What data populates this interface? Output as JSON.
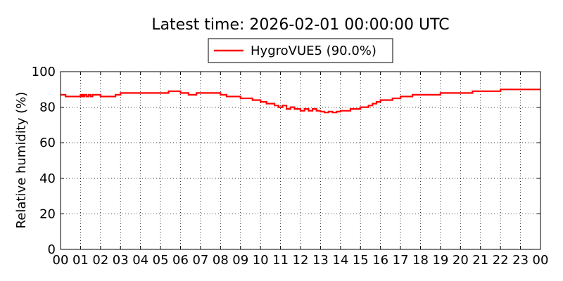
{
  "chart_data": {
    "type": "line",
    "title": "Latest time: 2026-02-01 00:00:00 UTC",
    "xlabel": "",
    "ylabel": "Relative humidity (%)",
    "xlim": [
      0,
      24
    ],
    "ylim": [
      0,
      100
    ],
    "x_tick_labels": [
      "00",
      "01",
      "02",
      "03",
      "04",
      "05",
      "06",
      "07",
      "08",
      "09",
      "10",
      "11",
      "12",
      "13",
      "14",
      "15",
      "16",
      "17",
      "18",
      "19",
      "20",
      "21",
      "22",
      "23",
      "00"
    ],
    "y_ticks": [
      0,
      20,
      40,
      60,
      80,
      100
    ],
    "grid": true,
    "legend_position": "top-center",
    "series": [
      {
        "name": "HygroVUE5 (90.0%)",
        "color": "#ff0000",
        "x": [
          0.0,
          0.25,
          0.9,
          1.0,
          1.05,
          1.1,
          1.15,
          1.2,
          1.3,
          1.4,
          1.5,
          1.6,
          2.0,
          2.6,
          2.75,
          3.0,
          4.0,
          5.0,
          5.4,
          6.0,
          6.4,
          6.8,
          7.0,
          8.0,
          8.3,
          8.9,
          9.0,
          9.4,
          9.6,
          10.0,
          10.2,
          10.3,
          10.5,
          10.7,
          10.9,
          11.1,
          11.3,
          11.5,
          11.7,
          12.0,
          12.2,
          12.4,
          12.6,
          12.8,
          13.0,
          13.2,
          13.4,
          13.6,
          13.8,
          14.0,
          14.2,
          14.5,
          14.8,
          15.0,
          15.2,
          15.4,
          15.6,
          15.8,
          16.0,
          16.2,
          16.6,
          17.0,
          17.2,
          17.6,
          18.0,
          18.6,
          19.0,
          20.0,
          20.2,
          20.6,
          21.0,
          21.3,
          22.0,
          23.0,
          24.0
        ],
        "values": [
          87,
          86,
          86,
          87,
          86,
          87,
          86,
          87,
          86,
          87,
          86,
          87,
          86,
          86,
          87,
          88,
          88,
          88,
          89,
          88,
          87,
          88,
          88,
          87,
          86,
          86,
          85,
          85,
          84,
          83,
          83,
          82,
          82,
          81,
          80,
          81,
          79,
          80,
          79,
          78,
          79,
          78,
          79,
          78,
          77.5,
          77,
          77.5,
          77,
          77.5,
          78,
          78,
          79,
          79,
          80,
          80,
          81,
          82,
          83,
          84,
          84,
          85,
          86,
          86,
          87,
          87,
          87,
          88,
          88,
          88,
          89,
          89,
          89,
          90,
          90,
          90
        ]
      }
    ]
  }
}
